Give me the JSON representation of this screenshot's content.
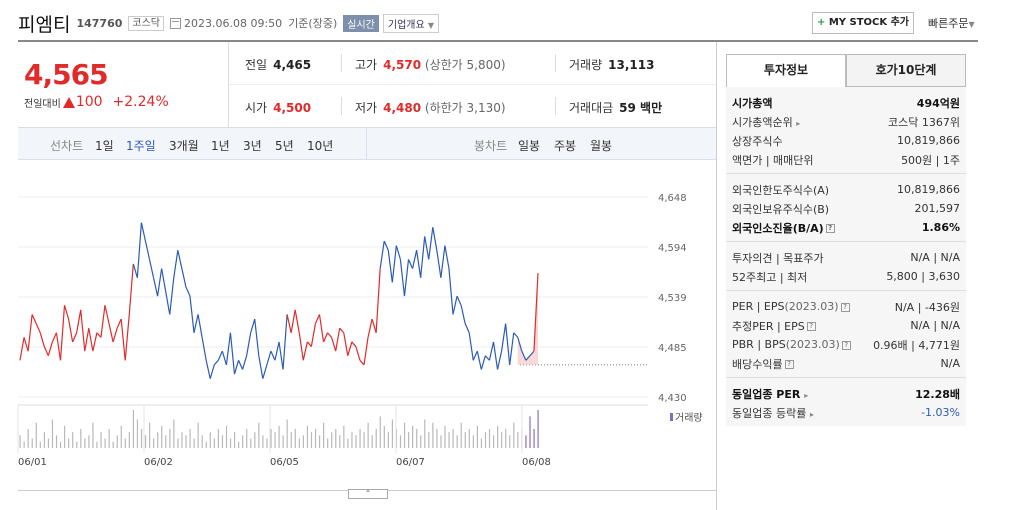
{
  "header": {
    "name": "피엠티",
    "code": "147760",
    "market": "코스닥",
    "date": "2023.06.08 09:50",
    "basis": "기준(장중)",
    "realtime": "실시간",
    "company_info": "기업개요",
    "mystock": "MY STOCK 추가",
    "quick_order": "빠른주문"
  },
  "price": {
    "current": "4,565",
    "change_label": "전일대비",
    "change": "100",
    "change_pct": "+2.24%"
  },
  "quote": {
    "prev_label": "전일",
    "prev": "4,465",
    "high_label": "고가",
    "high": "4,570",
    "upper_limit": "(상한가 5,800)",
    "volume_label": "거래량",
    "volume": "13,113",
    "open_label": "시가",
    "open": "4,500",
    "low_label": "저가",
    "low": "4,480",
    "lower_limit": "(하한가 3,130)",
    "amount_label": "거래대금",
    "amount": "59 백만"
  },
  "periods": {
    "line_label": "선차트",
    "line_items": [
      "1일",
      "1주일",
      "3개월",
      "1년",
      "3년",
      "5년",
      "10년"
    ],
    "selected": "1주일",
    "candle_label": "봉차트",
    "candle_items": [
      "일봉",
      "주봉",
      "월봉"
    ]
  },
  "colors": {
    "up": "#e12a2a",
    "down": "#2b5bb6",
    "volume": "#b9b9b9"
  },
  "chart_data": {
    "type": "line",
    "y_ticks": [
      "4,648",
      "4,594",
      "4,539",
      "4,485",
      "4,430"
    ],
    "ylim": [
      4430,
      4648
    ],
    "x_ticks": [
      "06/01",
      "06/02",
      "06/05",
      "06/07",
      "06/08"
    ],
    "volume_legend": "거래량",
    "prev_close": 4465,
    "series_price": [
      4470,
      4495,
      4480,
      4520,
      4510,
      4500,
      4485,
      4475,
      4490,
      4500,
      4470,
      4530,
      4515,
      4490,
      4500,
      4525,
      4480,
      4505,
      4480,
      4500,
      4495,
      4530,
      4510,
      4490,
      4505,
      4515,
      4470,
      4520,
      4575,
      4560,
      4620,
      4600,
      4580,
      4560,
      4540,
      4570,
      4545,
      4520,
      4560,
      4590,
      4570,
      4550,
      4540,
      4500,
      4520,
      4495,
      4470,
      4450,
      4465,
      4470,
      4480,
      4465,
      4500,
      4455,
      4470,
      4460,
      4475,
      4500,
      4515,
      4475,
      4450,
      4465,
      4480,
      4470,
      4490,
      4460,
      4520,
      4500,
      4525,
      4500,
      4470,
      4490,
      4485,
      4510,
      4520,
      4490,
      4500,
      4495,
      4480,
      4505,
      4500,
      4475,
      4490,
      4485,
      4470,
      4465,
      4495,
      4515,
      4500,
      4570,
      4600,
      4590,
      4555,
      4595,
      4580,
      4540,
      4580,
      4570,
      4590,
      4560,
      4605,
      4580,
      4615,
      4590,
      4560,
      4595,
      4570,
      4520,
      4540,
      4530,
      4510,
      4500,
      4470,
      4480,
      4460,
      4475,
      4470,
      4490,
      4460,
      4480,
      4510,
      4465,
      4500,
      4495,
      4480,
      4470,
      4475,
      4480,
      4565
    ],
    "series_volume": [
      4,
      2,
      6,
      3,
      8,
      2,
      5,
      3,
      9,
      4,
      2,
      7,
      3,
      5,
      2,
      6,
      3,
      4,
      8,
      2,
      5,
      3,
      6,
      2,
      4,
      7,
      3,
      5,
      12,
      9,
      6,
      4,
      8,
      3,
      5,
      7,
      4,
      6,
      9,
      3,
      5,
      4,
      6,
      3,
      8,
      4,
      2,
      5,
      3,
      6,
      4,
      7,
      3,
      5,
      2,
      4,
      6,
      3,
      5,
      8,
      4,
      3,
      6,
      5,
      7,
      4,
      9,
      5,
      6,
      3,
      4,
      7,
      5,
      6,
      4,
      8,
      3,
      5,
      6,
      4,
      7,
      3,
      5,
      4,
      6,
      5,
      8,
      4,
      6,
      10,
      7,
      5,
      9,
      6,
      4,
      8,
      5,
      7,
      6,
      4,
      9,
      5,
      8,
      6,
      4,
      7,
      5,
      6,
      4,
      8,
      5,
      6,
      4,
      7,
      3,
      5,
      6,
      4,
      7,
      5,
      6,
      4,
      8,
      5,
      6,
      4,
      10,
      6,
      12
    ]
  },
  "panel": {
    "tab_info": "투자정보",
    "tab_orderbook": "호가10단계",
    "market_cap_label": "시가총액",
    "market_cap": "494억원",
    "market_cap_rank_label": "시가총액순위",
    "market_cap_rank": "코스닥 1367위",
    "shares_label": "상장주식수",
    "shares": "10,819,866",
    "par_label": "액면가 | 매매단위",
    "par": "500원 | 1주",
    "foreign_limit_label": "외국인한도주식수(A)",
    "foreign_limit": "10,819,866",
    "foreign_hold_label": "외국인보유주식수(B)",
    "foreign_hold": "201,597",
    "foreign_ratio_label": "외국인소진율(B/A)",
    "foreign_ratio": "1.86%",
    "opinion_label": "투자의견 | 목표주가",
    "opinion": "N/A | N/A",
    "w52_label": "52주최고 | 최저",
    "w52": "5,800 | 3,630",
    "per_label": "PER | EPS",
    "per_date": "(2023.03)",
    "per": "N/A | -436원",
    "eper_label": "추정PER | EPS",
    "eper": "N/A | N/A",
    "pbr_label": "PBR | BPS",
    "pbr_date": "(2023.03)",
    "pbr": "0.96배 | 4,771원",
    "div_label": "배당수익률",
    "div": "N/A",
    "sector_per_label": "동일업종 PER",
    "sector_per": "12.28배",
    "sector_chg_label": "동일업종 등락률",
    "sector_chg": "-1.03%"
  }
}
